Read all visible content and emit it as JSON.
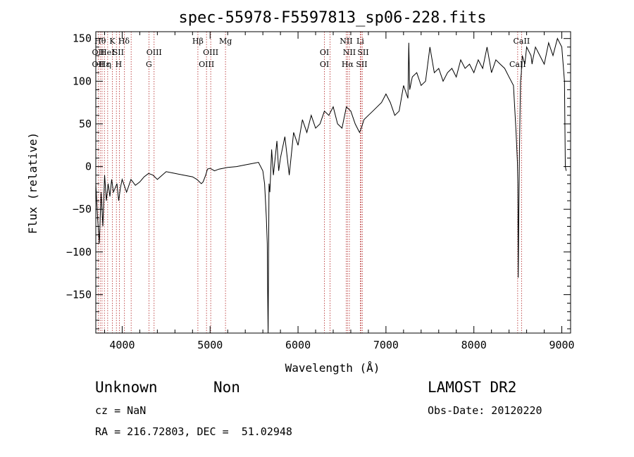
{
  "chart_data": {
    "type": "line",
    "title": "spec-55978-F5597813_sp06-228.fits",
    "xlabel": "Wavelength (Å)",
    "ylabel": "Flux (relative)",
    "xlim": [
      3700,
      9100
    ],
    "ylim": [
      -195,
      158
    ],
    "xticks": [
      4000,
      5000,
      6000,
      7000,
      8000,
      9000
    ],
    "yticks": [
      -150,
      -100,
      -50,
      0,
      50,
      100,
      150
    ],
    "grid": false,
    "series": [
      {
        "x": [
          3700,
          3720,
          3740,
          3760,
          3780,
          3800,
          3820,
          3840,
          3860,
          3880,
          3900,
          3920,
          3940,
          3960,
          3980,
          4000,
          4050,
          4100,
          4150,
          4200,
          4250,
          4300,
          4350,
          4400,
          4500,
          4600,
          4700,
          4800,
          4850,
          4900,
          4920,
          4950,
          4970,
          5000,
          5050,
          5100,
          5200,
          5300,
          5400,
          5500,
          5550,
          5600,
          5620,
          5640,
          5650,
          5655,
          5660,
          5665,
          5670,
          5680,
          5700,
          5720,
          5740,
          5760,
          5780,
          5800,
          5850,
          5900,
          5950,
          6000,
          6050,
          6100,
          6150,
          6200,
          6250,
          6300,
          6350,
          6400,
          6450,
          6500,
          6550,
          6600,
          6650,
          6700,
          6720,
          6750,
          6800,
          6850,
          6900,
          6950,
          7000,
          7050,
          7100,
          7150,
          7200,
          7250,
          7260,
          7270,
          7300,
          7350,
          7400,
          7450,
          7500,
          7550,
          7600,
          7650,
          7700,
          7750,
          7800,
          7850,
          7900,
          7950,
          8000,
          8050,
          8100,
          8150,
          8200,
          8250,
          8300,
          8350,
          8400,
          8450,
          8480,
          8495,
          8500,
          8505,
          8510,
          8520,
          8530,
          8540,
          8542,
          8545,
          8550,
          8580,
          8600,
          8650,
          8662,
          8670,
          8700,
          8750,
          8800,
          8850,
          8900,
          8950,
          9000,
          9030,
          9040,
          9050
        ],
        "y": [
          -20,
          -60,
          -90,
          -30,
          -70,
          -10,
          -40,
          -20,
          -35,
          -15,
          -30,
          -25,
          -20,
          -40,
          -25,
          -15,
          -30,
          -15,
          -22,
          -18,
          -12,
          -8,
          -10,
          -15,
          -6,
          -8,
          -10,
          -12,
          -15,
          -20,
          -18,
          -10,
          -3,
          -2,
          -5,
          -3,
          -1,
          0,
          2,
          4,
          5,
          -5,
          -20,
          -60,
          -90,
          -150,
          -195,
          -100,
          -20,
          -30,
          20,
          -10,
          10,
          30,
          -5,
          10,
          35,
          -10,
          40,
          25,
          55,
          40,
          60,
          45,
          50,
          65,
          60,
          70,
          50,
          45,
          70,
          65,
          50,
          40,
          45,
          55,
          60,
          65,
          70,
          75,
          85,
          75,
          60,
          65,
          95,
          80,
          145,
          90,
          105,
          110,
          95,
          100,
          140,
          110,
          115,
          100,
          110,
          115,
          105,
          125,
          115,
          120,
          110,
          125,
          115,
          140,
          110,
          125,
          120,
          115,
          105,
          95,
          40,
          5,
          -20,
          -130,
          -60,
          30,
          100,
          110,
          120,
          115,
          130,
          120,
          140,
          130,
          120,
          125,
          140,
          130,
          120,
          145,
          130,
          150,
          140,
          100,
          0,
          -5
        ]
      }
    ],
    "line_markers": [
      {
        "x": 3750,
        "row": 0,
        "label": "Hθ"
      },
      {
        "x": 3888,
        "row": 0,
        "label": "K"
      },
      {
        "x": 4020,
        "row": 0,
        "label": "Hδ"
      },
      {
        "x": 4861,
        "row": 0,
        "label": "Hβ"
      },
      {
        "x": 5175,
        "row": 0,
        "label": "Mg"
      },
      {
        "x": 6548,
        "row": 0,
        "label": "NII"
      },
      {
        "x": 6708,
        "row": 0,
        "label": "Li"
      },
      {
        "x": 8542,
        "row": 0,
        "label": "CaII"
      },
      {
        "x": 3727,
        "row": 1,
        "label": "OII"
      },
      {
        "x": 3830,
        "row": 1,
        "label": "HeI"
      },
      {
        "x": 3955,
        "row": 1,
        "label": "SII"
      },
      {
        "x": 4363,
        "row": 1,
        "label": "OIII"
      },
      {
        "x": 5007,
        "row": 1,
        "label": "OIII"
      },
      {
        "x": 6300,
        "row": 1,
        "label": "OI"
      },
      {
        "x": 6584,
        "row": 1,
        "label": "NII"
      },
      {
        "x": 6740,
        "row": 1,
        "label": "SII"
      },
      {
        "x": 3727,
        "row": 2,
        "label": "OII"
      },
      {
        "x": 3800,
        "row": 2,
        "label": "Hε"
      },
      {
        "x": 3850,
        "row": 2,
        "label": "η"
      },
      {
        "x": 3960,
        "row": 2,
        "label": "H"
      },
      {
        "x": 4304,
        "row": 2,
        "label": "G"
      },
      {
        "x": 4959,
        "row": 2,
        "label": "OIII"
      },
      {
        "x": 6300,
        "row": 2,
        "label": "OI"
      },
      {
        "x": 6563,
        "row": 2,
        "label": "Hα"
      },
      {
        "x": 6724,
        "row": 2,
        "label": "SII"
      },
      {
        "x": 8498,
        "row": 2,
        "label": "CaII"
      }
    ],
    "marker_lines": [
      3727,
      3750,
      3771,
      3798,
      3835,
      3889,
      3934,
      3968,
      4026,
      4102,
      4304,
      4363,
      4861,
      4959,
      5007,
      5175,
      6300,
      6364,
      6548,
      6563,
      6584,
      6708,
      6717,
      6731,
      8498,
      8542
    ]
  },
  "info": {
    "class": "Unknown",
    "subclass": "Non",
    "survey": "LAMOST DR2",
    "cz": "cz = NaN",
    "obsdate": "Obs-Date: 20120220",
    "coords": "RA = 216.72803, DEC =  51.02948"
  },
  "colors": {
    "line": "#000000",
    "markers": "#b22222"
  }
}
